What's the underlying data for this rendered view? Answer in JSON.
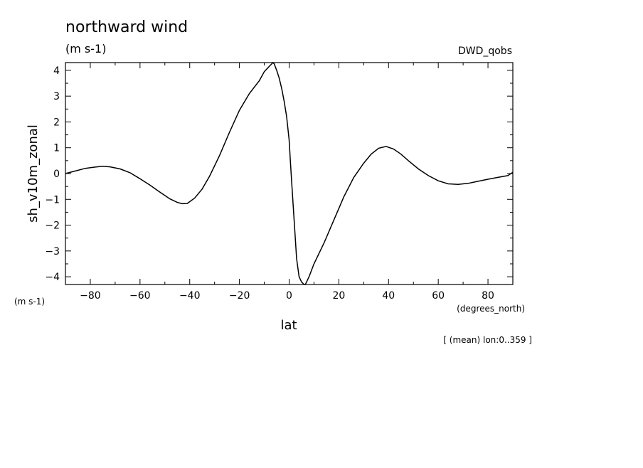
{
  "chart_data": {
    "type": "line",
    "title": "northward wind",
    "subtitle": "(m s-1)",
    "dataset_label": "DWD_qobs",
    "ylabel": "sh_v10m_zonal",
    "ylabel_unit": "(m s-1)",
    "xlabel": "lat",
    "xlabel_unit": "(degrees_north)",
    "annotation": "[ (mean) lon:0..359 ]",
    "xlim": [
      -90,
      90
    ],
    "ylim": [
      -4.3,
      4.3
    ],
    "x_ticks": [
      -80,
      -60,
      -40,
      -20,
      0,
      20,
      40,
      60,
      80
    ],
    "y_ticks": [
      -4,
      -3,
      -2,
      -1,
      0,
      1,
      2,
      3,
      4
    ],
    "grid": false,
    "legend": "none",
    "line_color": "#000000",
    "series": [
      {
        "x": [
          -90,
          -86,
          -82,
          -78,
          -75,
          -72,
          -68,
          -64,
          -60,
          -56,
          -52,
          -48,
          -45,
          -43,
          -41,
          -38,
          -35,
          -32,
          -28,
          -24,
          -20,
          -16,
          -12,
          -10,
          -8,
          -6.5,
          -6,
          -5,
          -4,
          -3,
          -2,
          -1,
          0,
          0.5,
          1,
          2,
          3,
          4,
          5,
          6,
          6.5,
          7,
          8,
          10,
          14,
          18,
          22,
          26,
          30,
          33,
          36,
          39,
          42,
          45,
          48,
          52,
          56,
          60,
          64,
          68,
          72,
          76,
          80,
          84,
          88,
          90
        ],
        "y": [
          0,
          0.1,
          0.2,
          0.25,
          0.28,
          0.26,
          0.18,
          0.03,
          -0.2,
          -0.45,
          -0.72,
          -0.98,
          -1.12,
          -1.17,
          -1.16,
          -0.95,
          -0.6,
          -0.1,
          0.7,
          1.6,
          2.45,
          3.1,
          3.6,
          3.95,
          4.15,
          4.3,
          4.25,
          4.0,
          3.7,
          3.3,
          2.8,
          2.2,
          1.3,
          0.5,
          -0.3,
          -1.8,
          -3.3,
          -4.0,
          -4.2,
          -4.35,
          -4.3,
          -4.2,
          -4.0,
          -3.5,
          -2.7,
          -1.8,
          -0.9,
          -0.15,
          0.4,
          0.75,
          0.98,
          1.05,
          0.95,
          0.75,
          0.5,
          0.18,
          -0.08,
          -0.28,
          -0.4,
          -0.42,
          -0.38,
          -0.3,
          -0.22,
          -0.15,
          -0.08,
          0.05
        ]
      }
    ]
  }
}
